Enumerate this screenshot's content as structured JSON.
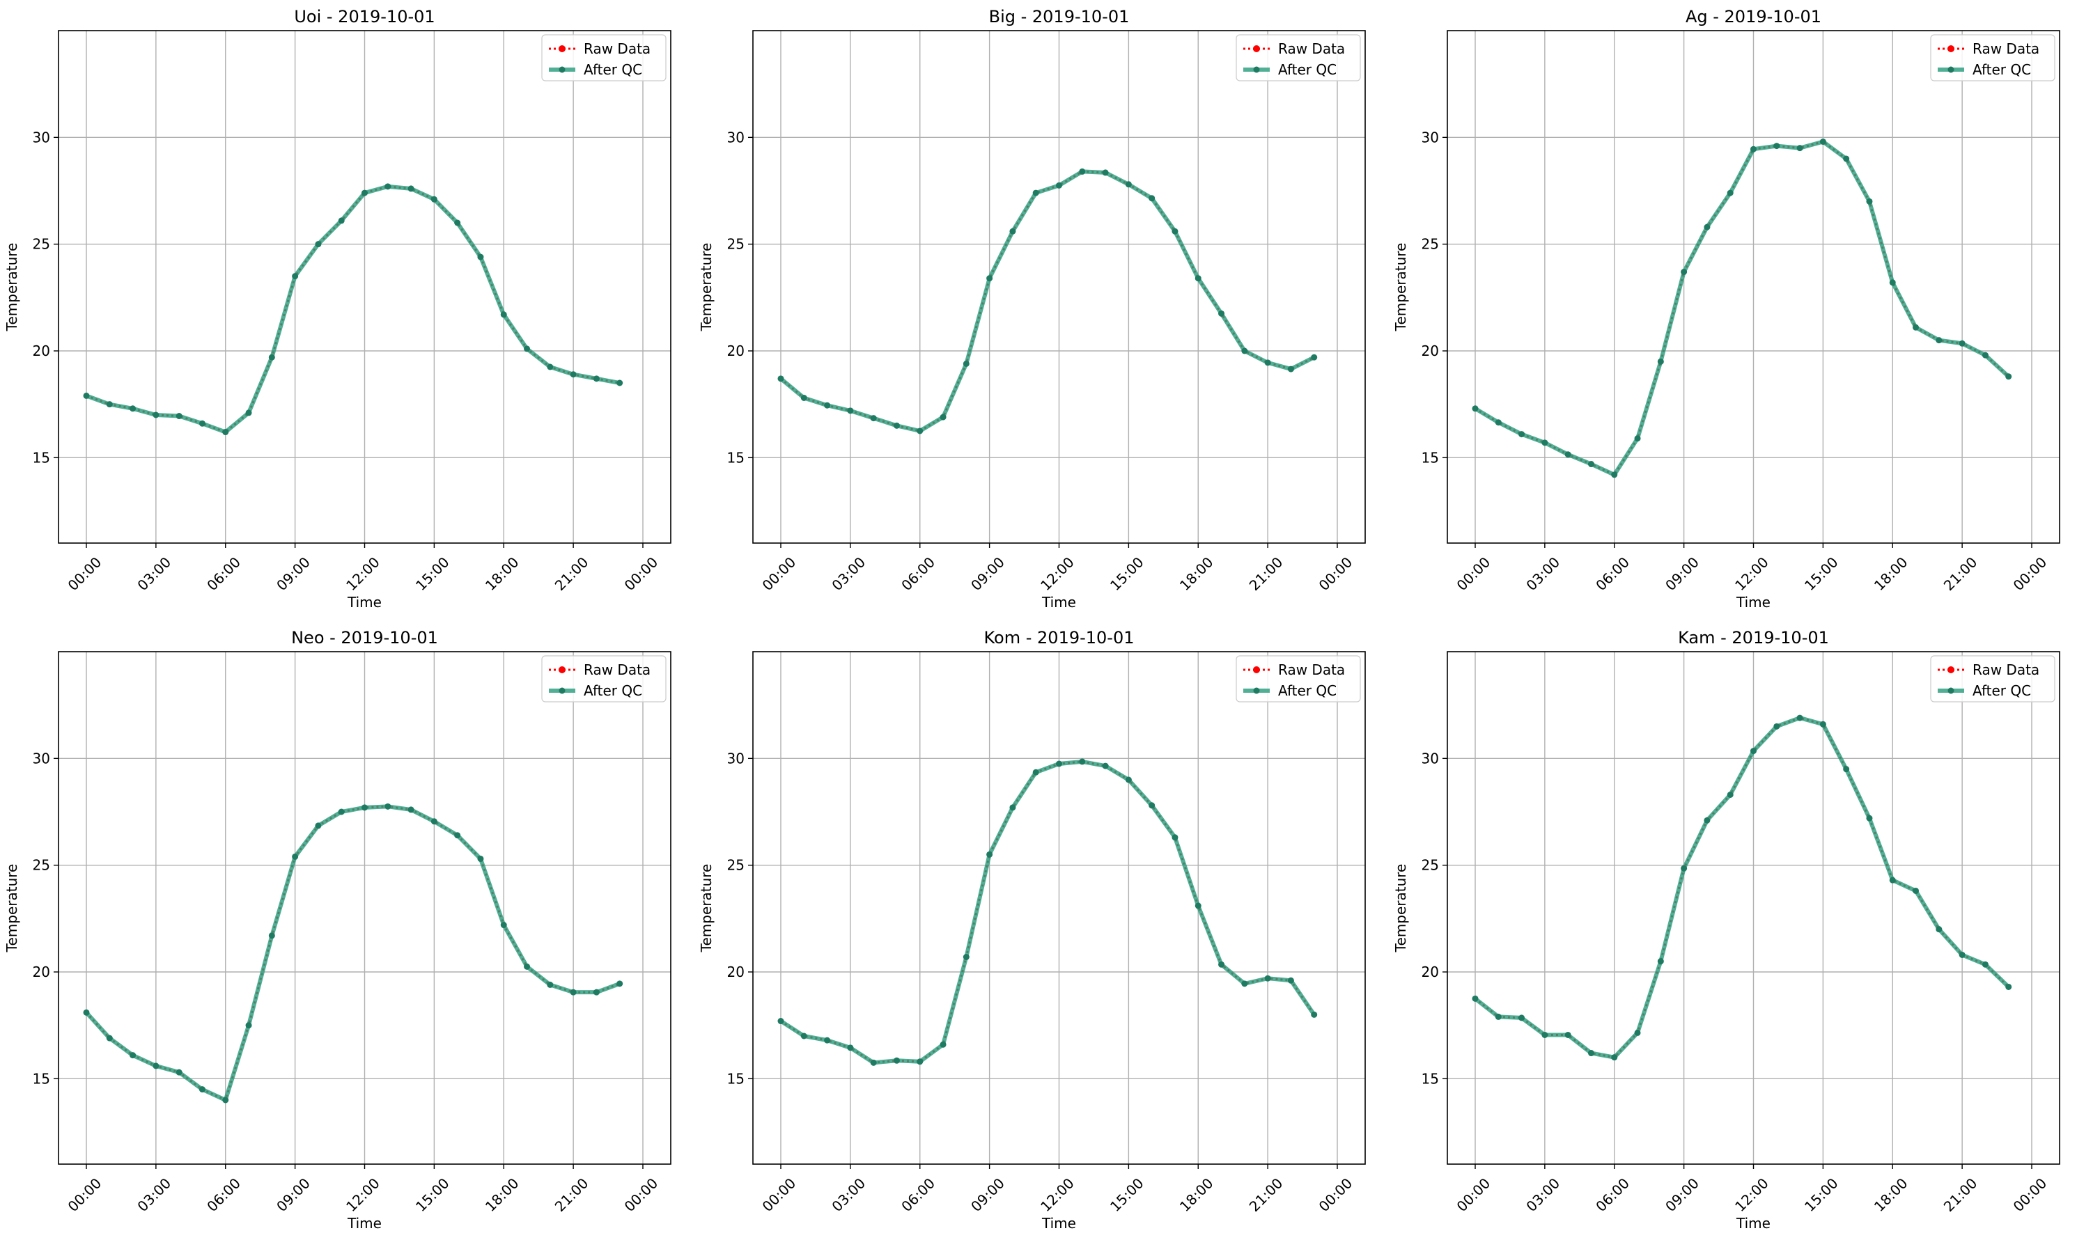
{
  "colors": {
    "raw": "#ff0000",
    "qc": "#2a9d7e",
    "grid": "#b0b0b0",
    "axis": "#000000"
  },
  "chart_data": [
    {
      "type": "line",
      "title": "Uoi - 2019-10-01",
      "xlabel": "Time",
      "ylabel": "Temperature",
      "ylim": [
        11,
        35
      ],
      "yticks": [
        15,
        20,
        25,
        30
      ],
      "xticks": [
        "00:00",
        "03:00",
        "06:00",
        "09:00",
        "12:00",
        "15:00",
        "18:00",
        "21:00",
        "00:00"
      ],
      "x_hours": [
        0,
        1,
        2,
        3,
        4,
        5,
        6,
        7,
        8,
        9,
        10,
        11,
        12,
        13,
        14,
        15,
        16,
        17,
        18,
        19,
        20,
        21,
        22,
        23
      ],
      "grid": true,
      "legend": "upper-right",
      "series": [
        {
          "name": "Raw Data",
          "values": [
            17.9,
            17.5,
            17.3,
            17.0,
            16.95,
            16.6,
            16.2,
            17.1,
            19.7,
            23.5,
            25.0,
            26.1,
            27.4,
            27.7,
            27.6,
            27.1,
            26.0,
            24.4,
            21.7,
            20.1,
            19.25,
            18.9,
            18.7,
            18.5
          ]
        },
        {
          "name": "After QC",
          "values": [
            17.9,
            17.5,
            17.3,
            17.0,
            16.95,
            16.6,
            16.2,
            17.1,
            19.7,
            23.5,
            25.0,
            26.1,
            27.4,
            27.7,
            27.6,
            27.1,
            26.0,
            24.4,
            21.7,
            20.1,
            19.25,
            18.9,
            18.7,
            18.5
          ]
        }
      ]
    },
    {
      "type": "line",
      "title": "Big - 2019-10-01",
      "xlabel": "Time",
      "ylabel": "Temperature",
      "ylim": [
        11,
        35
      ],
      "yticks": [
        15,
        20,
        25,
        30
      ],
      "xticks": [
        "00:00",
        "03:00",
        "06:00",
        "09:00",
        "12:00",
        "15:00",
        "18:00",
        "21:00",
        "00:00"
      ],
      "x_hours": [
        0,
        1,
        2,
        3,
        4,
        5,
        6,
        7,
        8,
        9,
        10,
        11,
        12,
        13,
        14,
        15,
        16,
        17,
        18,
        19,
        20,
        21,
        22,
        23
      ],
      "grid": true,
      "legend": "upper-right",
      "series": [
        {
          "name": "Raw Data",
          "values": [
            18.7,
            17.8,
            17.45,
            17.2,
            16.85,
            16.5,
            16.25,
            16.9,
            19.4,
            23.4,
            25.6,
            27.4,
            27.75,
            28.4,
            28.35,
            27.8,
            27.15,
            25.6,
            23.4,
            21.75,
            20.0,
            19.45,
            19.15,
            19.7
          ]
        },
        {
          "name": "After QC",
          "values": [
            18.7,
            17.8,
            17.45,
            17.2,
            16.85,
            16.5,
            16.25,
            16.9,
            19.4,
            23.4,
            25.6,
            27.4,
            27.75,
            28.4,
            28.35,
            27.8,
            27.15,
            25.6,
            23.4,
            21.75,
            20.0,
            19.45,
            19.15,
            19.7
          ]
        }
      ]
    },
    {
      "type": "line",
      "title": "Ag - 2019-10-01",
      "xlabel": "Time",
      "ylabel": "Temperature",
      "ylim": [
        11,
        35
      ],
      "yticks": [
        15,
        20,
        25,
        30
      ],
      "xticks": [
        "00:00",
        "03:00",
        "06:00",
        "09:00",
        "12:00",
        "15:00",
        "18:00",
        "21:00",
        "00:00"
      ],
      "x_hours": [
        0,
        1,
        2,
        3,
        4,
        5,
        6,
        7,
        8,
        9,
        10,
        11,
        12,
        13,
        14,
        15,
        16,
        17,
        18,
        19,
        20,
        21,
        22,
        23
      ],
      "grid": true,
      "legend": "upper-right",
      "series": [
        {
          "name": "Raw Data",
          "values": [
            17.3,
            16.65,
            16.1,
            15.7,
            15.15,
            14.7,
            14.2,
            15.9,
            19.5,
            23.7,
            25.8,
            27.4,
            29.45,
            29.6,
            29.5,
            29.8,
            29.0,
            27.0,
            23.2,
            21.1,
            20.5,
            20.35,
            19.8,
            18.8
          ]
        },
        {
          "name": "After QC",
          "values": [
            17.3,
            16.65,
            16.1,
            15.7,
            15.15,
            14.7,
            14.2,
            15.9,
            19.5,
            23.7,
            25.8,
            27.4,
            29.45,
            29.6,
            29.5,
            29.8,
            29.0,
            27.0,
            23.2,
            21.1,
            20.5,
            20.35,
            19.8,
            18.8
          ]
        }
      ]
    },
    {
      "type": "line",
      "title": "Neo - 2019-10-01",
      "xlabel": "Time",
      "ylabel": "Temperature",
      "ylim": [
        11,
        35
      ],
      "yticks": [
        15,
        20,
        25,
        30
      ],
      "xticks": [
        "00:00",
        "03:00",
        "06:00",
        "09:00",
        "12:00",
        "15:00",
        "18:00",
        "21:00",
        "00:00"
      ],
      "x_hours": [
        0,
        1,
        2,
        3,
        4,
        5,
        6,
        7,
        8,
        9,
        10,
        11,
        12,
        13,
        14,
        15,
        16,
        17,
        18,
        19,
        20,
        21,
        22,
        23
      ],
      "grid": true,
      "legend": "upper-right",
      "series": [
        {
          "name": "Raw Data",
          "values": [
            18.1,
            16.9,
            16.1,
            15.6,
            15.3,
            14.5,
            14.0,
            17.5,
            21.7,
            25.4,
            26.85,
            27.5,
            27.7,
            27.75,
            27.6,
            27.05,
            26.4,
            25.3,
            22.2,
            20.25,
            19.4,
            19.05,
            19.05,
            19.45
          ]
        },
        {
          "name": "After QC",
          "values": [
            18.1,
            16.9,
            16.1,
            15.6,
            15.3,
            14.5,
            14.0,
            17.5,
            21.7,
            25.4,
            26.85,
            27.5,
            27.7,
            27.75,
            27.6,
            27.05,
            26.4,
            25.3,
            22.2,
            20.25,
            19.4,
            19.05,
            19.05,
            19.45
          ]
        }
      ]
    },
    {
      "type": "line",
      "title": "Kom - 2019-10-01",
      "xlabel": "Time",
      "ylabel": "Temperature",
      "ylim": [
        11,
        35
      ],
      "yticks": [
        15,
        20,
        25,
        30
      ],
      "xticks": [
        "00:00",
        "03:00",
        "06:00",
        "09:00",
        "12:00",
        "15:00",
        "18:00",
        "21:00",
        "00:00"
      ],
      "x_hours": [
        0,
        1,
        2,
        3,
        4,
        5,
        6,
        7,
        8,
        9,
        10,
        11,
        12,
        13,
        14,
        15,
        16,
        17,
        18,
        19,
        20,
        21,
        22,
        23
      ],
      "grid": true,
      "legend": "upper-right",
      "series": [
        {
          "name": "Raw Data",
          "values": [
            17.7,
            17.0,
            16.8,
            16.45,
            15.75,
            15.85,
            15.8,
            16.6,
            20.7,
            25.5,
            27.7,
            29.35,
            29.75,
            29.85,
            29.65,
            29.0,
            27.8,
            26.3,
            23.1,
            20.35,
            19.45,
            19.7,
            19.6,
            18.0
          ]
        },
        {
          "name": "After QC",
          "values": [
            17.7,
            17.0,
            16.8,
            16.45,
            15.75,
            15.85,
            15.8,
            16.6,
            20.7,
            25.5,
            27.7,
            29.35,
            29.75,
            29.85,
            29.65,
            29.0,
            27.8,
            26.3,
            23.1,
            20.35,
            19.45,
            19.7,
            19.6,
            18.0
          ]
        }
      ]
    },
    {
      "type": "line",
      "title": "Kam - 2019-10-01",
      "xlabel": "Time",
      "ylabel": "Temperature",
      "ylim": [
        11,
        35
      ],
      "yticks": [
        15,
        20,
        25,
        30
      ],
      "xticks": [
        "00:00",
        "03:00",
        "06:00",
        "09:00",
        "12:00",
        "15:00",
        "18:00",
        "21:00",
        "00:00"
      ],
      "x_hours": [
        0,
        1,
        2,
        3,
        4,
        5,
        6,
        7,
        8,
        9,
        10,
        11,
        12,
        13,
        14,
        15,
        16,
        17,
        18,
        19,
        20,
        21,
        22,
        23
      ],
      "grid": true,
      "legend": "upper-right",
      "series": [
        {
          "name": "Raw Data",
          "values": [
            18.75,
            17.9,
            17.85,
            17.05,
            17.05,
            16.2,
            16.0,
            17.15,
            20.5,
            24.85,
            27.1,
            28.3,
            30.35,
            31.5,
            31.9,
            31.6,
            29.5,
            27.2,
            24.3,
            23.8,
            22.0,
            20.8,
            20.35,
            19.3
          ]
        },
        {
          "name": "After QC",
          "values": [
            18.75,
            17.9,
            17.85,
            17.05,
            17.05,
            16.2,
            16.0,
            17.15,
            20.5,
            24.85,
            27.1,
            28.3,
            30.35,
            31.5,
            31.9,
            31.6,
            29.5,
            27.2,
            24.3,
            23.8,
            22.0,
            20.8,
            20.35,
            19.3
          ]
        }
      ]
    }
  ]
}
